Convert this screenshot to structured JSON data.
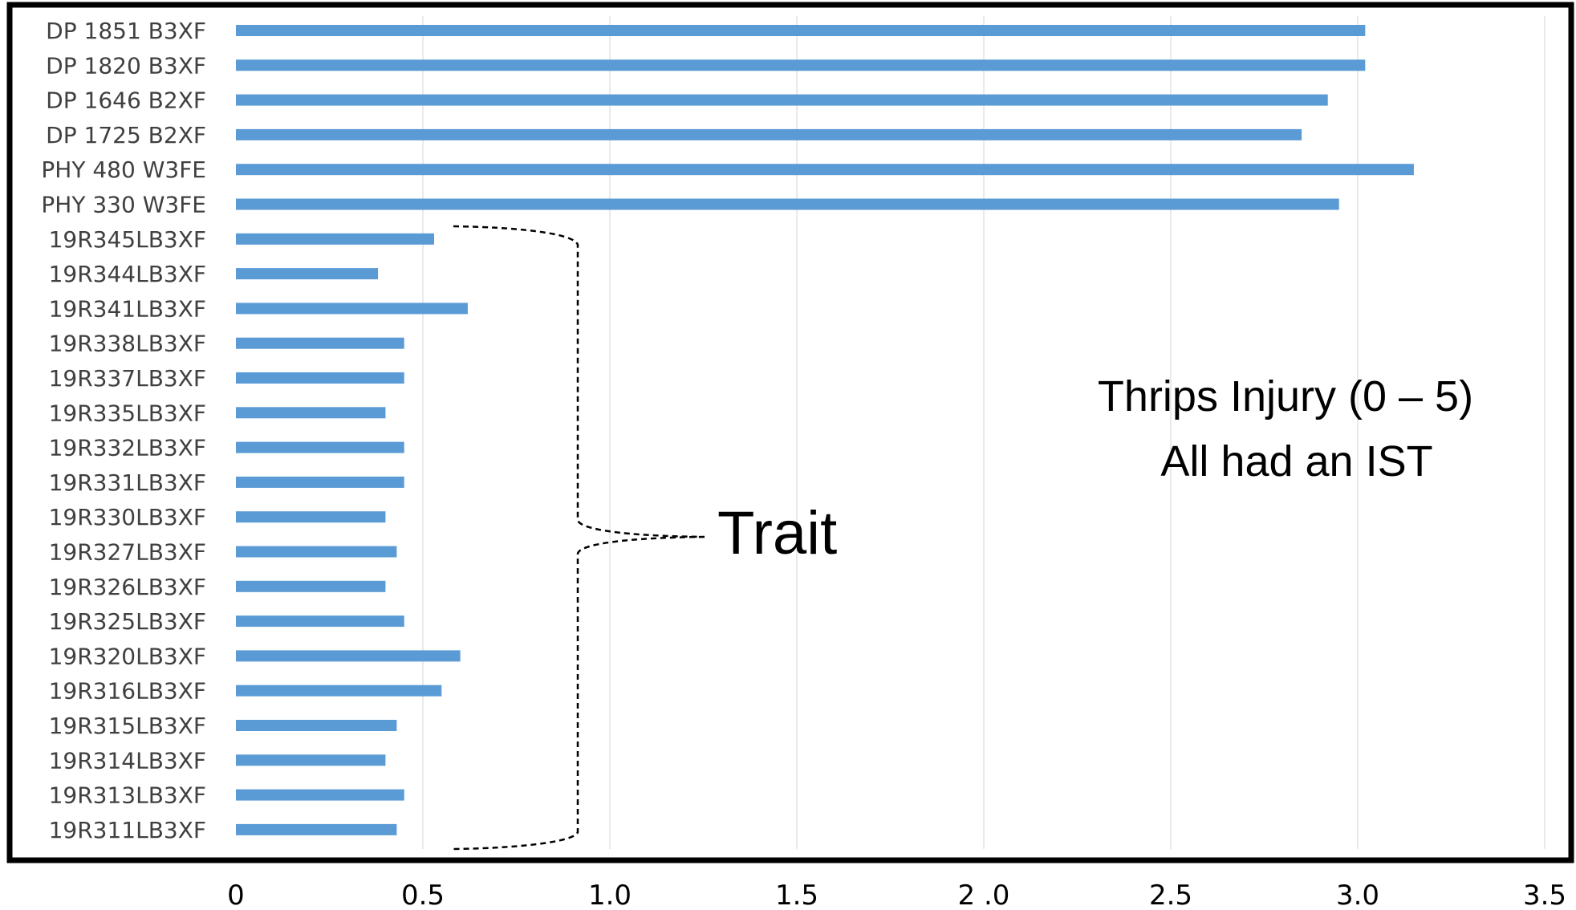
{
  "chart_data": {
    "type": "bar",
    "orientation": "horizontal",
    "categories": [
      "DP 1851 B3XF",
      "DP 1820 B3XF",
      "DP 1646 B2XF",
      "DP 1725 B2XF",
      "PHY 480 W3FE",
      "PHY 330 W3FE",
      "19R345LB3XF",
      "19R344LB3XF",
      "19R341LB3XF",
      "19R338LB3XF",
      "19R337LB3XF",
      "19R335LB3XF",
      "19R332LB3XF",
      "19R331LB3XF",
      "19R330LB3XF",
      "19R327LB3XF",
      "19R326LB3XF",
      "19R325LB3XF",
      "19R320LB3XF",
      "19R316LB3XF",
      "19R315LB3XF",
      "19R314LB3XF",
      "19R313LB3XF",
      "19R311LB3XF"
    ],
    "values": [
      3.02,
      3.02,
      2.92,
      2.85,
      3.15,
      2.95,
      0.53,
      0.38,
      0.62,
      0.45,
      0.45,
      0.4,
      0.45,
      0.45,
      0.4,
      0.43,
      0.4,
      0.45,
      0.6,
      0.55,
      0.43,
      0.4,
      0.45,
      0.43
    ],
    "xlim": [
      0,
      3.5
    ],
    "xticks": [
      0,
      0.5,
      1.0,
      1.5,
      2.0,
      2.5,
      3.0,
      3.5
    ],
    "xtick_labels": [
      "0",
      "0.5",
      "1.0",
      "1.5",
      "2 .0",
      "2.5",
      "3.0",
      "3.5"
    ],
    "grid": "vertical",
    "bar_color": "#5b9bd5",
    "annotation_lines": [
      "Thrips Injury (0 – 5)",
      "All had an IST"
    ],
    "brace_label": "Trait",
    "brace_from_category": "19R345LB3XF",
    "brace_to_category": "19R311LB3XF"
  }
}
